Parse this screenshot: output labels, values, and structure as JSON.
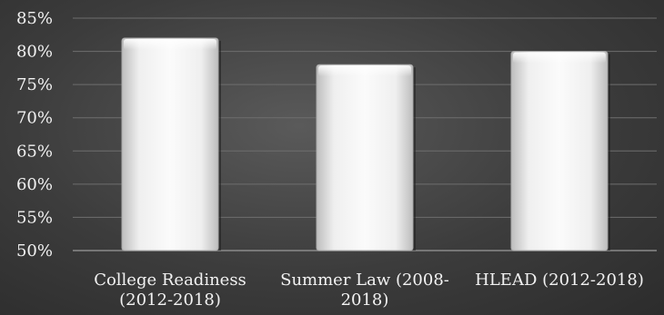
{
  "chart_data": {
    "type": "bar",
    "categories": [
      [
        "College Readiness",
        "(2012-2018)"
      ],
      [
        "Summer Law (2008-",
        "2018)"
      ],
      [
        "HLEAD (2012-2018)"
      ]
    ],
    "values": [
      82,
      78,
      80
    ],
    "ylim": [
      50,
      85
    ],
    "ytick_values": [
      50,
      55,
      60,
      65,
      70,
      75,
      80,
      85
    ],
    "ytick_labels": [
      "50%",
      "55%",
      "60%",
      "65%",
      "70%",
      "75%",
      "80%",
      "85%"
    ],
    "grid": true,
    "title": "",
    "xlabel": "",
    "ylabel": "",
    "colors": {
      "bar_light": "#f4f4f4",
      "bar_dark": "#c9c9c9",
      "grid": "#6e6e6e",
      "text": "#f2f2f2"
    }
  }
}
